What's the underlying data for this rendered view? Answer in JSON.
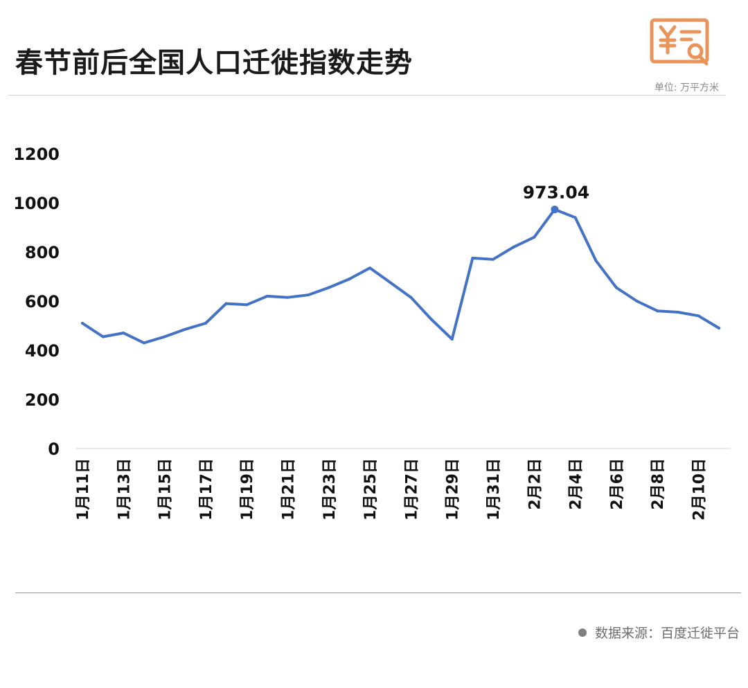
{
  "header": {
    "title": "春节前后全国人口迁徙指数走势",
    "unit": "单位: 万平方米"
  },
  "footer": {
    "source": "数据来源：百度迁徙平台"
  },
  "logo": {
    "icon": "yuan-document-search-icon",
    "color": "#E8945A"
  },
  "chart_data": {
    "type": "line",
    "line_color": "#4472C4",
    "ylim": [
      0,
      1200
    ],
    "y_ticks": [
      "0",
      "200",
      "400",
      "600",
      "800",
      "1000",
      "1200"
    ],
    "x_tick_labels": [
      "1月11日",
      "1月13日",
      "1月15日",
      "1月17日",
      "1月19日",
      "1月21日",
      "1月23日",
      "1月25日",
      "1月27日",
      "1月29日",
      "1月31日",
      "2月2日",
      "2月4日",
      "2月6日",
      "2月8日",
      "2月10日"
    ],
    "x": [
      "1月11日",
      "1月12日",
      "1月13日",
      "1月14日",
      "1月15日",
      "1月16日",
      "1月17日",
      "1月18日",
      "1月19日",
      "1月20日",
      "1月21日",
      "1月22日",
      "1月23日",
      "1月24日",
      "1月25日",
      "1月26日",
      "1月27日",
      "1月28日",
      "1月29日",
      "1月30日",
      "1月31日",
      "2月1日",
      "2月2日",
      "2月3日",
      "2月4日",
      "2月5日",
      "2月6日",
      "2月7日",
      "2月8日",
      "2月9日",
      "2月10日",
      "2月11日"
    ],
    "series": [
      {
        "values": [
          510,
          455,
          470,
          430,
          455,
          485,
          510,
          590,
          585,
          620,
          615,
          625,
          655,
          690,
          735,
          675,
          615,
          525,
          445,
          775,
          770,
          820,
          860,
          973.04,
          940,
          765,
          655,
          600,
          560,
          555,
          540,
          490
        ]
      }
    ],
    "annotation": {
      "x": "2月3日",
      "value": 973.04,
      "label": "973.04"
    },
    "grid": false,
    "legend": "none"
  }
}
